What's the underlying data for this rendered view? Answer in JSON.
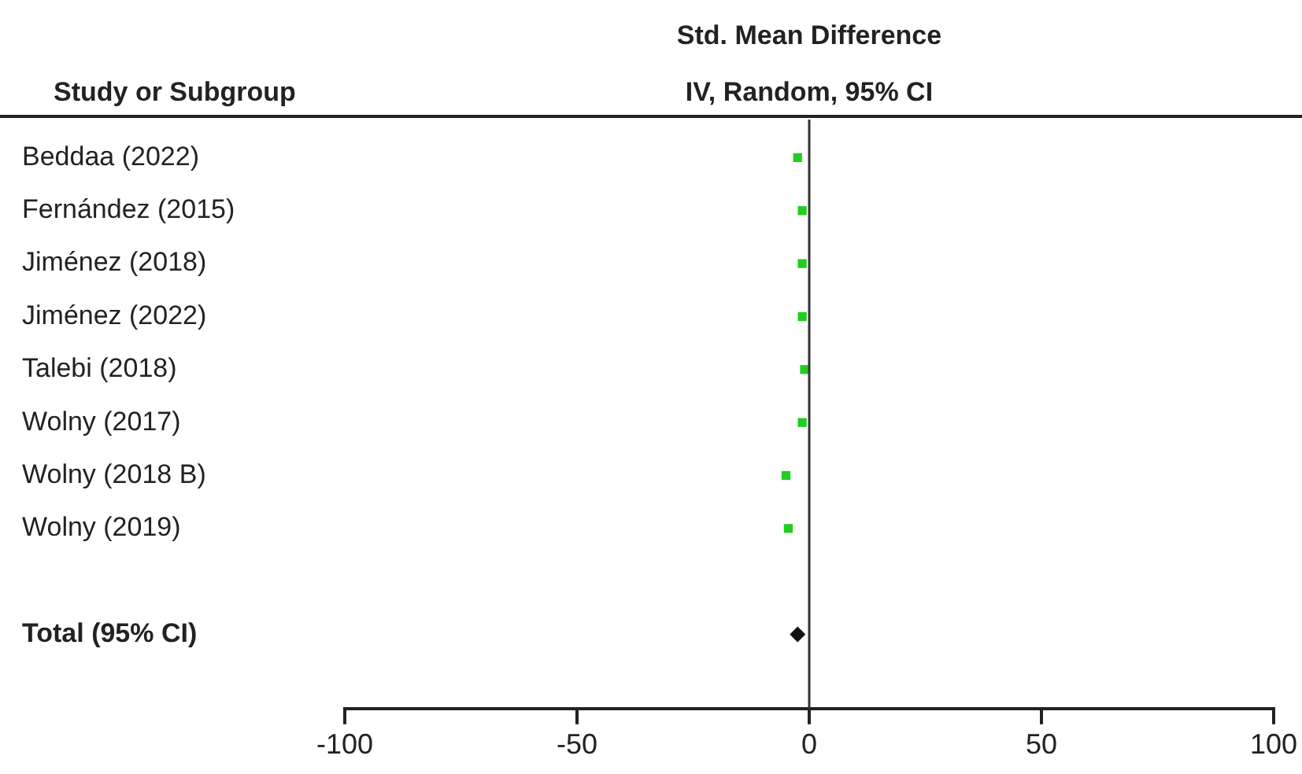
{
  "chart_data": {
    "type": "scatter",
    "orientation": "horizontal",
    "title": "Std. Mean Difference",
    "subtitle": "IV, Random, 95% CI",
    "ylabel": "Study or Subgroup",
    "categories": [
      "Beddaa (2022)",
      "Fernández (2015)",
      "Jiménez (2018)",
      "Jiménez (2022)",
      "Talebi (2018)",
      "Wolny (2017)",
      "Wolny (2018 B)",
      "Wolny (2019)",
      null,
      "Total (95% CI)"
    ],
    "series": [
      {
        "type": "scatter",
        "color": "#22cc22",
        "marker": "square",
        "values": [
          -2.5,
          -1.5,
          -1.5,
          -1.5,
          -1,
          -1.5,
          -5,
          -4.5,
          null,
          null
        ]
      },
      {
        "type": "scatter",
        "color": "#111111",
        "marker": "diamond",
        "values": [
          null,
          null,
          null,
          null,
          null,
          null,
          null,
          null,
          null,
          -2.5
        ]
      }
    ],
    "xlim": [
      -100,
      100
    ],
    "xticks": [
      -100,
      -50,
      0,
      50,
      100
    ],
    "ref_lines": [
      {
        "axis": "x",
        "value": 0,
        "color": "#333333"
      }
    ],
    "grid": false,
    "legend": false
  }
}
